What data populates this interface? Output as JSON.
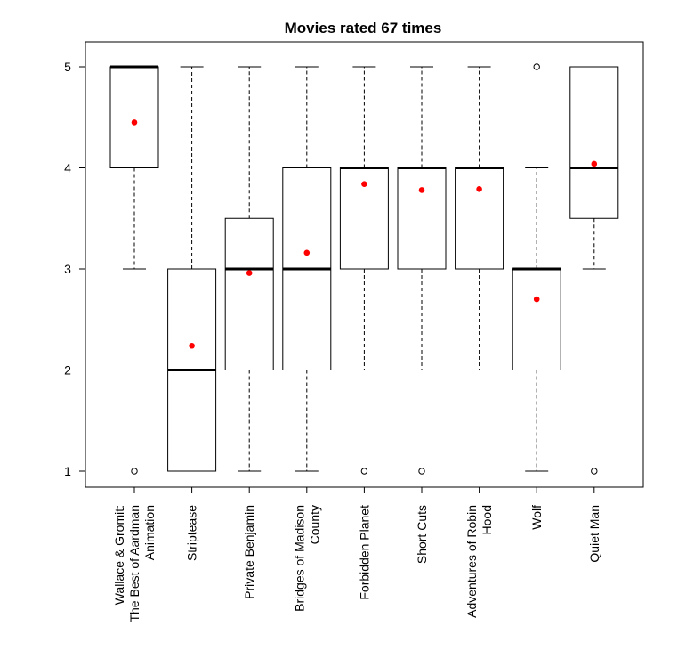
{
  "chart_data": {
    "type": "boxplot",
    "title": "Movies rated 67 times",
    "xlabel": "",
    "ylabel": "",
    "ylim": [
      1,
      5
    ],
    "yticks": [
      1,
      2,
      3,
      4,
      5
    ],
    "grid": false,
    "categories": [
      "Wallace & Gromit: The Best of Aardman Animation",
      "Striptease",
      "Private Benjamin",
      "Bridges of Madison County",
      "Forbidden Planet",
      "Short Cuts",
      "Adventures of Robin Hood",
      "Wolf",
      "Quiet Man"
    ],
    "category_label_lines": [
      [
        "Wallace & Gromit:",
        "The Best of Aardman",
        "Animation"
      ],
      [
        "Striptease"
      ],
      [
        "Private Benjamin"
      ],
      [
        "Bridges of Madison",
        "County"
      ],
      [
        "Forbidden Planet"
      ],
      [
        "Short Cuts"
      ],
      [
        "Adventures of Robin",
        "Hood"
      ],
      [
        "Wolf"
      ],
      [
        "Quiet Man"
      ]
    ],
    "boxes": [
      {
        "whisker_low": 3,
        "q1": 4,
        "median": 5,
        "q3": 5,
        "whisker_high": 5,
        "mean": 4.45,
        "outliers": [
          1
        ]
      },
      {
        "whisker_low": 1,
        "q1": 1,
        "median": 2,
        "q3": 3,
        "whisker_high": 5,
        "mean": 2.24,
        "outliers": []
      },
      {
        "whisker_low": 1,
        "q1": 2,
        "median": 3,
        "q3": 3.5,
        "whisker_high": 5,
        "mean": 2.96,
        "outliers": []
      },
      {
        "whisker_low": 1,
        "q1": 2,
        "median": 3,
        "q3": 4,
        "whisker_high": 5,
        "mean": 3.16,
        "outliers": []
      },
      {
        "whisker_low": 2,
        "q1": 3,
        "median": 4,
        "q3": 4,
        "whisker_high": 5,
        "mean": 3.84,
        "outliers": [
          1
        ]
      },
      {
        "whisker_low": 2,
        "q1": 3,
        "median": 4,
        "q3": 4,
        "whisker_high": 5,
        "mean": 3.78,
        "outliers": [
          1
        ]
      },
      {
        "whisker_low": 2,
        "q1": 3,
        "median": 4,
        "q3": 4,
        "whisker_high": 5,
        "mean": 3.79,
        "outliers": []
      },
      {
        "whisker_low": 1,
        "q1": 2,
        "median": 3,
        "q3": 3,
        "whisker_high": 4,
        "mean": 2.7,
        "outliers": [
          5
        ]
      },
      {
        "whisker_low": 3,
        "q1": 3.5,
        "median": 4,
        "q3": 5,
        "whisker_high": 5,
        "mean": 4.04,
        "outliers": [
          1
        ]
      }
    ],
    "colors": {
      "mean_point": "#ff0000",
      "box_stroke": "#000000",
      "background": "#ffffff"
    }
  }
}
